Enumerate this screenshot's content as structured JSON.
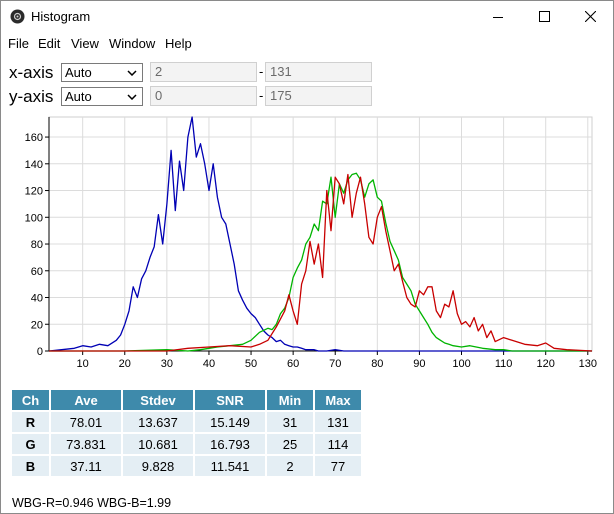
{
  "window": {
    "title": "Histogram"
  },
  "menu": [
    "File",
    "Edit",
    "View",
    "Window",
    "Help"
  ],
  "controls": {
    "x_axis": {
      "label": "x-axis",
      "mode": "Auto",
      "min": "2",
      "max": "131"
    },
    "y_axis": {
      "label": "y-axis",
      "mode": "Auto",
      "min": "0",
      "max": "175"
    },
    "separator": "-"
  },
  "chart_data": {
    "type": "line",
    "xlim": [
      2,
      131
    ],
    "ylim": [
      0,
      175
    ],
    "x_ticks": [
      "10",
      "20",
      "30",
      "40",
      "50",
      "60",
      "70",
      "80",
      "90",
      "100",
      "110",
      "120",
      "130"
    ],
    "y_ticks": [
      "0",
      "20",
      "40",
      "60",
      "80",
      "100",
      "120",
      "140",
      "160"
    ],
    "grid": true,
    "series": [
      {
        "color": "#0000b4",
        "x": [
          2,
          5,
          8,
          10,
          12,
          14,
          16,
          18,
          19,
          20,
          21,
          22,
          23,
          24,
          25,
          26,
          27,
          28,
          29,
          30,
          31,
          32,
          33,
          34,
          35,
          36,
          37,
          38,
          39,
          40,
          41,
          42,
          43,
          44,
          45,
          46,
          47,
          48,
          49,
          50,
          51,
          52,
          53,
          54,
          55,
          56,
          57,
          58,
          59,
          60,
          61,
          62,
          63,
          64,
          65,
          66,
          68,
          70,
          72,
          75,
          80,
          90,
          100,
          110,
          120,
          131
        ],
        "y": [
          0,
          1,
          2,
          4,
          3,
          5,
          4,
          8,
          12,
          20,
          30,
          48,
          40,
          54,
          60,
          70,
          78,
          102,
          80,
          110,
          150,
          105,
          142,
          120,
          160,
          175,
          145,
          155,
          140,
          120,
          140,
          115,
          100,
          95,
          80,
          65,
          45,
          38,
          32,
          28,
          25,
          20,
          15,
          12,
          10,
          7,
          8,
          5,
          4,
          3,
          3,
          2,
          1,
          1,
          1,
          0,
          0,
          1,
          0,
          0,
          0,
          0,
          0,
          0,
          0,
          0
        ]
      },
      {
        "color": "#00b400",
        "x": [
          2,
          20,
          30,
          35,
          38,
          40,
          42,
          45,
          48,
          50,
          52,
          54,
          55,
          56,
          57,
          58,
          59,
          60,
          61,
          62,
          63,
          64,
          65,
          66,
          67,
          68,
          69,
          70,
          71,
          72,
          73,
          74,
          75,
          76,
          77,
          78,
          79,
          80,
          81,
          82,
          83,
          84,
          85,
          86,
          87,
          88,
          89,
          90,
          91,
          92,
          93,
          94,
          95,
          96,
          97,
          98,
          100,
          102,
          105,
          108,
          110,
          112,
          115,
          120,
          131
        ],
        "y": [
          0,
          0,
          1,
          0,
          1,
          2,
          3,
          4,
          5,
          8,
          14,
          17,
          16,
          20,
          28,
          32,
          40,
          55,
          62,
          68,
          80,
          85,
          95,
          90,
          112,
          110,
          130,
          100,
          125,
          118,
          128,
          132,
          133,
          128,
          115,
          125,
          128,
          115,
          112,
          96,
          82,
          75,
          68,
          55,
          50,
          45,
          35,
          30,
          25,
          20,
          14,
          10,
          8,
          6,
          5,
          4,
          3,
          4,
          2,
          1,
          1,
          0,
          0,
          0,
          0
        ]
      },
      {
        "color": "#c80000",
        "x": [
          2,
          30,
          35,
          40,
          45,
          50,
          52,
          54,
          56,
          58,
          59,
          60,
          61,
          62,
          63,
          64,
          65,
          66,
          67,
          68,
          69,
          70,
          71,
          72,
          73,
          74,
          75,
          76,
          77,
          78,
          79,
          80,
          81,
          82,
          83,
          84,
          85,
          86,
          87,
          88,
          89,
          90,
          91,
          92,
          93,
          94,
          95,
          96,
          97,
          98,
          99,
          100,
          101,
          102,
          103,
          104,
          105,
          106,
          107,
          108,
          110,
          112,
          115,
          118,
          120,
          122,
          125,
          131
        ],
        "y": [
          0,
          0,
          2,
          3,
          4,
          3,
          5,
          8,
          18,
          30,
          42,
          30,
          20,
          50,
          60,
          82,
          65,
          80,
          55,
          120,
          90,
          130,
          125,
          110,
          132,
          100,
          118,
          130,
          110,
          85,
          80,
          100,
          108,
          90,
          75,
          60,
          65,
          52,
          40,
          35,
          33,
          45,
          42,
          48,
          48,
          30,
          25,
          35,
          33,
          45,
          28,
          20,
          22,
          18,
          25,
          15,
          20,
          10,
          15,
          7,
          10,
          8,
          5,
          4,
          6,
          2,
          1,
          0
        ]
      }
    ]
  },
  "stats": {
    "headers": [
      "Ch",
      "Ave",
      "Stdev",
      "SNR",
      "Min",
      "Max"
    ],
    "rows": [
      [
        "R",
        "78.01",
        "13.637",
        "15.149",
        "31",
        "131"
      ],
      [
        "G",
        "73.831",
        "10.681",
        "16.793",
        "25",
        "114"
      ],
      [
        "B",
        "37.11",
        "9.828",
        "11.541",
        "2",
        "77"
      ]
    ]
  },
  "footer": "WBG-R=0.946 WBG-B=1.99",
  "icons": {
    "app": "histogram-app-icon",
    "minimize": "minimize-icon",
    "maximize": "maximize-icon",
    "close": "close-icon"
  }
}
